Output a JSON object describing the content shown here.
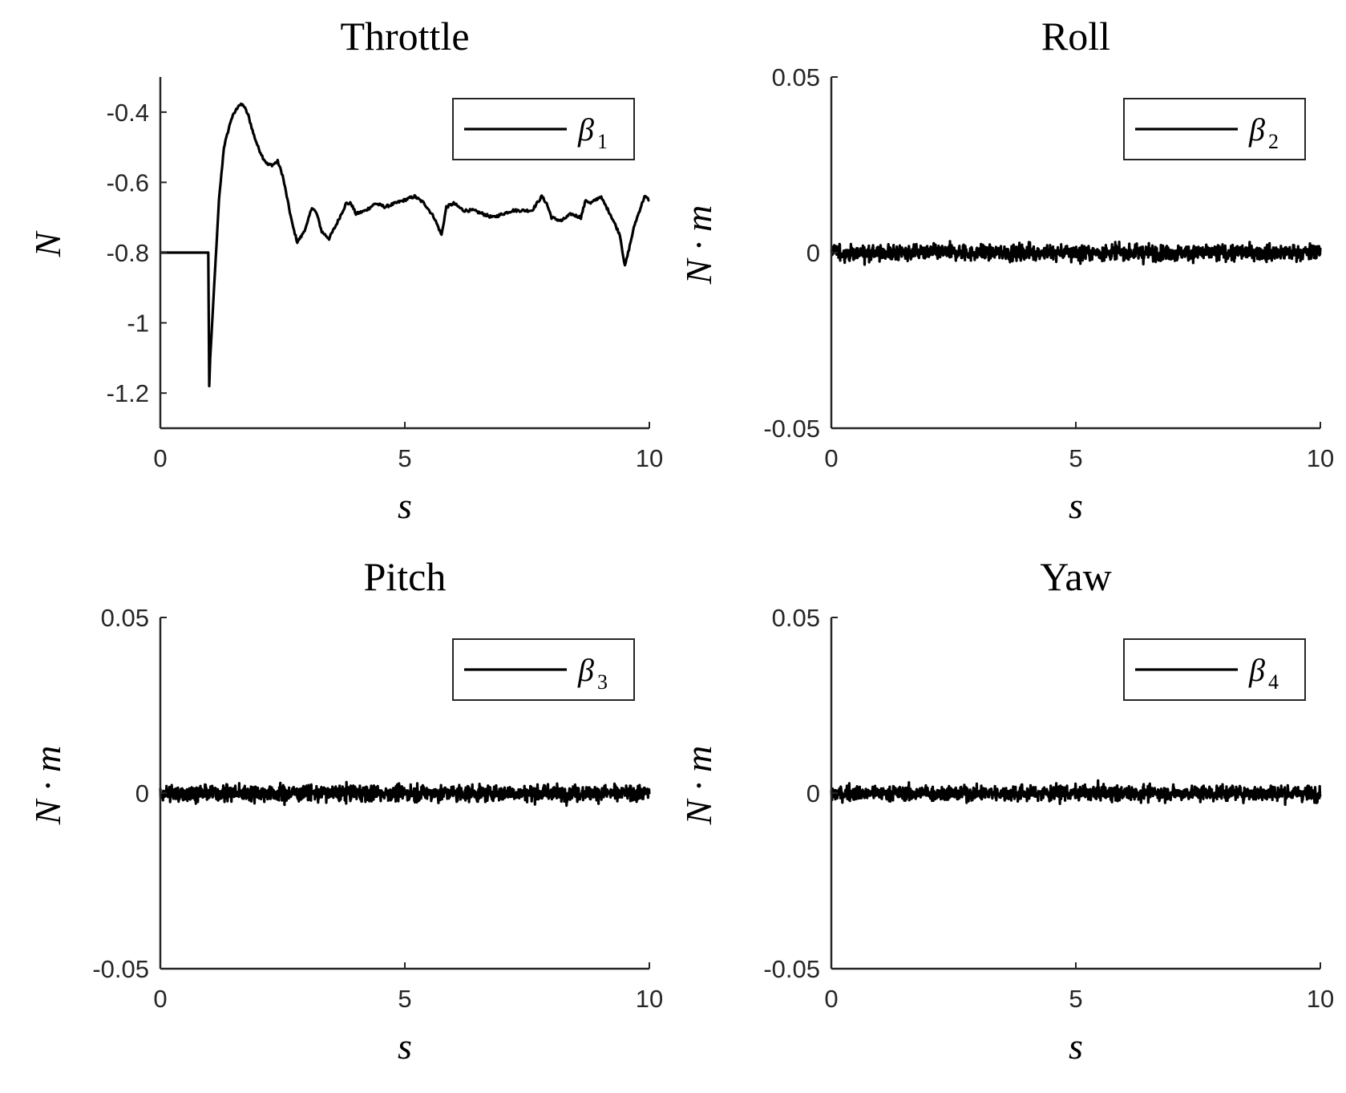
{
  "chart_data": [
    {
      "type": "line",
      "title": "Throttle",
      "xlabel": "s",
      "ylabel": "N",
      "xlim": [
        0,
        10
      ],
      "ylim": [
        -1.3,
        -0.3
      ],
      "xticks": [
        "0",
        "5",
        "10"
      ],
      "yticks": [
        "-1.2",
        "-1",
        "-0.8",
        "-0.6",
        "-0.4"
      ],
      "legend": {
        "position": "top-right",
        "entries": [
          {
            "symbol": "β",
            "subscript": "1"
          }
        ]
      },
      "series": [
        {
          "legend_symbol": "β",
          "legend_subscript": "1",
          "color": "#000000",
          "noise": 0.004,
          "x": [
            0,
            0.98,
            1.0,
            1.02,
            1.1,
            1.2,
            1.3,
            1.45,
            1.6,
            1.7,
            1.8,
            1.9,
            2.0,
            2.1,
            2.2,
            2.3,
            2.4,
            2.5,
            2.6,
            2.7,
            2.8,
            2.9,
            3.0,
            3.1,
            3.2,
            3.3,
            3.45,
            3.6,
            3.8,
            3.9,
            4.0,
            4.2,
            4.4,
            4.6,
            4.8,
            5.0,
            5.2,
            5.4,
            5.6,
            5.75,
            5.85,
            6.0,
            6.2,
            6.4,
            6.6,
            6.8,
            7.0,
            7.2,
            7.4,
            7.6,
            7.8,
            7.9,
            8.0,
            8.2,
            8.4,
            8.6,
            8.7,
            8.8,
            9.0,
            9.2,
            9.4,
            9.5,
            9.6,
            9.7,
            9.8,
            9.9,
            10.0
          ],
          "y": [
            -0.8,
            -0.8,
            -1.18,
            -1.1,
            -0.9,
            -0.65,
            -0.5,
            -0.42,
            -0.38,
            -0.38,
            -0.41,
            -0.46,
            -0.5,
            -0.53,
            -0.55,
            -0.55,
            -0.54,
            -0.58,
            -0.65,
            -0.72,
            -0.77,
            -0.75,
            -0.72,
            -0.67,
            -0.69,
            -0.74,
            -0.76,
            -0.72,
            -0.66,
            -0.66,
            -0.69,
            -0.68,
            -0.66,
            -0.67,
            -0.66,
            -0.65,
            -0.64,
            -0.66,
            -0.7,
            -0.75,
            -0.67,
            -0.66,
            -0.68,
            -0.68,
            -0.69,
            -0.7,
            -0.69,
            -0.68,
            -0.68,
            -0.68,
            -0.64,
            -0.66,
            -0.7,
            -0.71,
            -0.69,
            -0.7,
            -0.65,
            -0.66,
            -0.64,
            -0.69,
            -0.75,
            -0.84,
            -0.78,
            -0.72,
            -0.68,
            -0.64,
            -0.65
          ]
        }
      ]
    },
    {
      "type": "line",
      "title": "Roll",
      "xlabel": "s",
      "ylabel": "N · m",
      "xlim": [
        0,
        10
      ],
      "ylim": [
        -0.05,
        0.05
      ],
      "xticks": [
        "0",
        "5",
        "10"
      ],
      "yticks": [
        "-0.05",
        "0",
        "0.05"
      ],
      "legend": {
        "position": "top-right",
        "entries": [
          {
            "symbol": "β",
            "subscript": "2"
          }
        ]
      },
      "series": [
        {
          "legend_symbol": "β",
          "legend_subscript": "2",
          "color": "#000000",
          "mean": 0,
          "noise_amplitude": 0.0035,
          "peak_max": 0.006,
          "peak_min": -0.006
        }
      ]
    },
    {
      "type": "line",
      "title": "Pitch",
      "xlabel": "s",
      "ylabel": "N · m",
      "xlim": [
        0,
        10
      ],
      "ylim": [
        -0.05,
        0.05
      ],
      "xticks": [
        "0",
        "5",
        "10"
      ],
      "yticks": [
        "-0.05",
        "0",
        "0.05"
      ],
      "legend": {
        "position": "top-right",
        "entries": [
          {
            "symbol": "β",
            "subscript": "3"
          }
        ]
      },
      "series": [
        {
          "legend_symbol": "β",
          "legend_subscript": "3",
          "color": "#000000",
          "mean": 0,
          "noise_amplitude": 0.0035,
          "peak_max": 0.008,
          "peak_min": -0.006
        }
      ]
    },
    {
      "type": "line",
      "title": "Yaw",
      "xlabel": "s",
      "ylabel": "N · m",
      "xlim": [
        0,
        10
      ],
      "ylim": [
        -0.05,
        0.05
      ],
      "xticks": [
        "0",
        "5",
        "10"
      ],
      "yticks": [
        "-0.05",
        "0",
        "0.05"
      ],
      "legend": {
        "position": "top-right",
        "entries": [
          {
            "symbol": "β",
            "subscript": "4"
          }
        ]
      },
      "series": [
        {
          "legend_symbol": "β",
          "legend_subscript": "4",
          "color": "#000000",
          "mean": 0,
          "noise_amplitude": 0.0033,
          "peak_max": 0.006,
          "peak_min": -0.007
        }
      ]
    }
  ]
}
